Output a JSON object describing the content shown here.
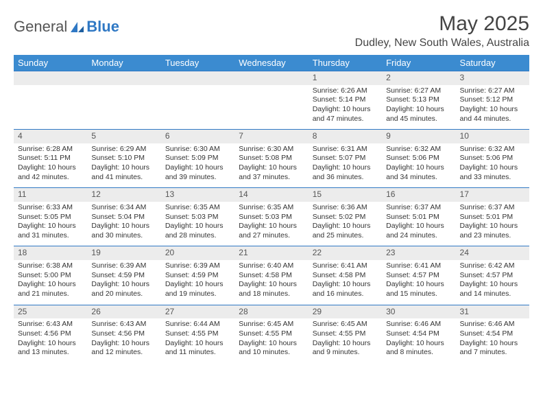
{
  "logo": {
    "text1": "General",
    "text2": "Blue"
  },
  "title": "May 2025",
  "location": "Dudley, New South Wales, Australia",
  "colors": {
    "header_bg": "#3b8bd0",
    "header_text": "#ffffff",
    "daynum_bg": "#ececec",
    "daynum_border": "#2f78c4",
    "logo_accent": "#2f78c4",
    "body_text": "#333333"
  },
  "weekdays": [
    "Sunday",
    "Monday",
    "Tuesday",
    "Wednesday",
    "Thursday",
    "Friday",
    "Saturday"
  ],
  "weeks": [
    {
      "nums": [
        "",
        "",
        "",
        "",
        "1",
        "2",
        "3"
      ],
      "data": [
        null,
        null,
        null,
        null,
        {
          "sunrise": "6:26 AM",
          "sunset": "5:14 PM",
          "daylight": "10 hours and 47 minutes."
        },
        {
          "sunrise": "6:27 AM",
          "sunset": "5:13 PM",
          "daylight": "10 hours and 45 minutes."
        },
        {
          "sunrise": "6:27 AM",
          "sunset": "5:12 PM",
          "daylight": "10 hours and 44 minutes."
        }
      ]
    },
    {
      "nums": [
        "4",
        "5",
        "6",
        "7",
        "8",
        "9",
        "10"
      ],
      "data": [
        {
          "sunrise": "6:28 AM",
          "sunset": "5:11 PM",
          "daylight": "10 hours and 42 minutes."
        },
        {
          "sunrise": "6:29 AM",
          "sunset": "5:10 PM",
          "daylight": "10 hours and 41 minutes."
        },
        {
          "sunrise": "6:30 AM",
          "sunset": "5:09 PM",
          "daylight": "10 hours and 39 minutes."
        },
        {
          "sunrise": "6:30 AM",
          "sunset": "5:08 PM",
          "daylight": "10 hours and 37 minutes."
        },
        {
          "sunrise": "6:31 AM",
          "sunset": "5:07 PM",
          "daylight": "10 hours and 36 minutes."
        },
        {
          "sunrise": "6:32 AM",
          "sunset": "5:06 PM",
          "daylight": "10 hours and 34 minutes."
        },
        {
          "sunrise": "6:32 AM",
          "sunset": "5:06 PM",
          "daylight": "10 hours and 33 minutes."
        }
      ]
    },
    {
      "nums": [
        "11",
        "12",
        "13",
        "14",
        "15",
        "16",
        "17"
      ],
      "data": [
        {
          "sunrise": "6:33 AM",
          "sunset": "5:05 PM",
          "daylight": "10 hours and 31 minutes."
        },
        {
          "sunrise": "6:34 AM",
          "sunset": "5:04 PM",
          "daylight": "10 hours and 30 minutes."
        },
        {
          "sunrise": "6:35 AM",
          "sunset": "5:03 PM",
          "daylight": "10 hours and 28 minutes."
        },
        {
          "sunrise": "6:35 AM",
          "sunset": "5:03 PM",
          "daylight": "10 hours and 27 minutes."
        },
        {
          "sunrise": "6:36 AM",
          "sunset": "5:02 PM",
          "daylight": "10 hours and 25 minutes."
        },
        {
          "sunrise": "6:37 AM",
          "sunset": "5:01 PM",
          "daylight": "10 hours and 24 minutes."
        },
        {
          "sunrise": "6:37 AM",
          "sunset": "5:01 PM",
          "daylight": "10 hours and 23 minutes."
        }
      ]
    },
    {
      "nums": [
        "18",
        "19",
        "20",
        "21",
        "22",
        "23",
        "24"
      ],
      "data": [
        {
          "sunrise": "6:38 AM",
          "sunset": "5:00 PM",
          "daylight": "10 hours and 21 minutes."
        },
        {
          "sunrise": "6:39 AM",
          "sunset": "4:59 PM",
          "daylight": "10 hours and 20 minutes."
        },
        {
          "sunrise": "6:39 AM",
          "sunset": "4:59 PM",
          "daylight": "10 hours and 19 minutes."
        },
        {
          "sunrise": "6:40 AM",
          "sunset": "4:58 PM",
          "daylight": "10 hours and 18 minutes."
        },
        {
          "sunrise": "6:41 AM",
          "sunset": "4:58 PM",
          "daylight": "10 hours and 16 minutes."
        },
        {
          "sunrise": "6:41 AM",
          "sunset": "4:57 PM",
          "daylight": "10 hours and 15 minutes."
        },
        {
          "sunrise": "6:42 AM",
          "sunset": "4:57 PM",
          "daylight": "10 hours and 14 minutes."
        }
      ]
    },
    {
      "nums": [
        "25",
        "26",
        "27",
        "28",
        "29",
        "30",
        "31"
      ],
      "data": [
        {
          "sunrise": "6:43 AM",
          "sunset": "4:56 PM",
          "daylight": "10 hours and 13 minutes."
        },
        {
          "sunrise": "6:43 AM",
          "sunset": "4:56 PM",
          "daylight": "10 hours and 12 minutes."
        },
        {
          "sunrise": "6:44 AM",
          "sunset": "4:55 PM",
          "daylight": "10 hours and 11 minutes."
        },
        {
          "sunrise": "6:45 AM",
          "sunset": "4:55 PM",
          "daylight": "10 hours and 10 minutes."
        },
        {
          "sunrise": "6:45 AM",
          "sunset": "4:55 PM",
          "daylight": "10 hours and 9 minutes."
        },
        {
          "sunrise": "6:46 AM",
          "sunset": "4:54 PM",
          "daylight": "10 hours and 8 minutes."
        },
        {
          "sunrise": "6:46 AM",
          "sunset": "4:54 PM",
          "daylight": "10 hours and 7 minutes."
        }
      ]
    }
  ],
  "labels": {
    "sunrise": "Sunrise:",
    "sunset": "Sunset:",
    "daylight": "Daylight:"
  }
}
